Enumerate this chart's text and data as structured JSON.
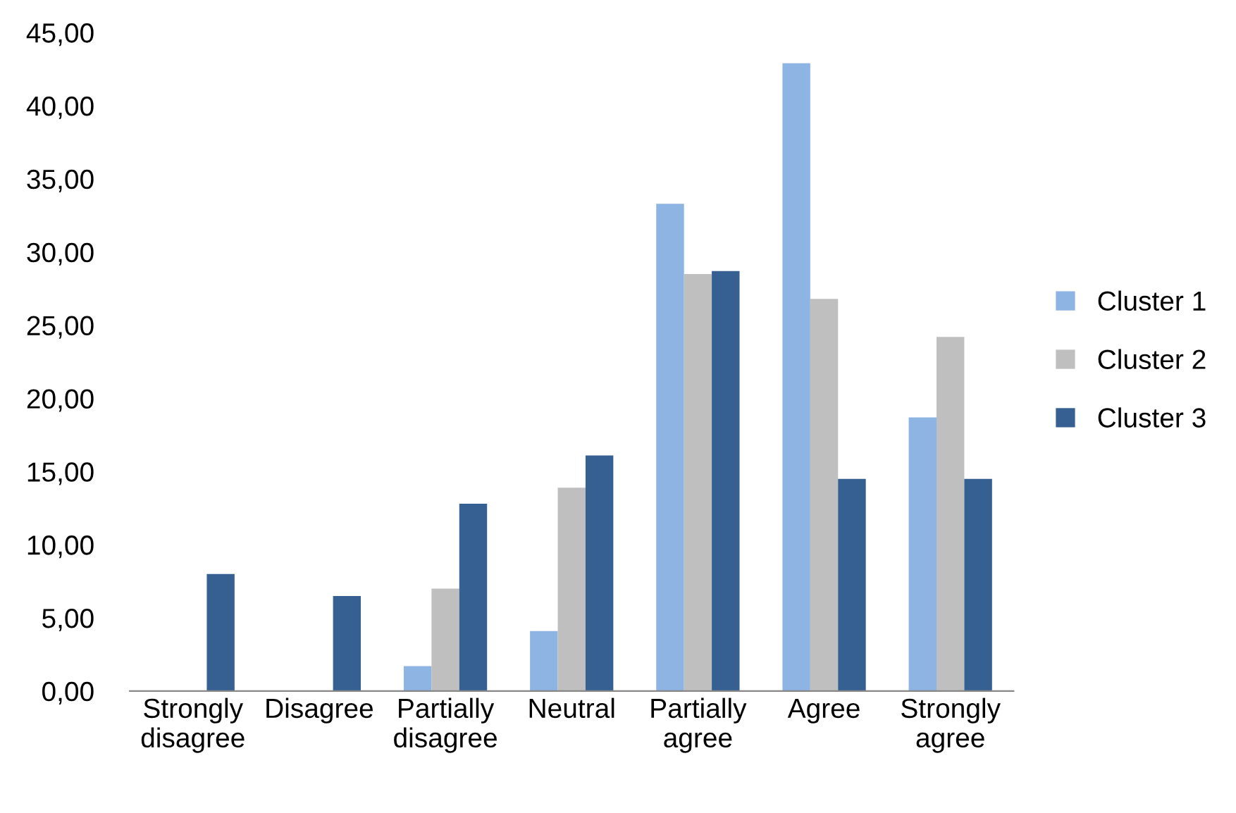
{
  "chart_data": {
    "type": "bar",
    "categories": [
      "Strongly\ndisagree",
      "Disagree",
      "Partially\ndisagree",
      "Neutral",
      "Partially\nagree",
      "Agree",
      "Strongly\nagree"
    ],
    "series": [
      {
        "name": "Cluster 1",
        "color": "#8eb4e3",
        "values": [
          0,
          0,
          1.7,
          4.1,
          33.3,
          42.9,
          18.7
        ]
      },
      {
        "name": "Cluster 2",
        "color": "#bfbfbf",
        "values": [
          0,
          0,
          7.0,
          13.9,
          28.5,
          26.8,
          24.2
        ]
      },
      {
        "name": "Cluster 3",
        "color": "#366092",
        "values": [
          8.0,
          6.5,
          12.8,
          16.1,
          28.7,
          14.5,
          14.5
        ]
      }
    ],
    "ylim": [
      0,
      45
    ],
    "yticks": [
      {
        "value": 0,
        "label": "0,00"
      },
      {
        "value": 5,
        "label": "5,00"
      },
      {
        "value": 10,
        "label": "10,00"
      },
      {
        "value": 15,
        "label": "15,00"
      },
      {
        "value": 20,
        "label": "20,00"
      },
      {
        "value": 25,
        "label": "25,00"
      },
      {
        "value": 30,
        "label": "30,00"
      },
      {
        "value": 35,
        "label": "35,00"
      },
      {
        "value": 40,
        "label": "40,00"
      },
      {
        "value": 45,
        "label": "45,00"
      }
    ],
    "grid": false,
    "legend": "right"
  }
}
